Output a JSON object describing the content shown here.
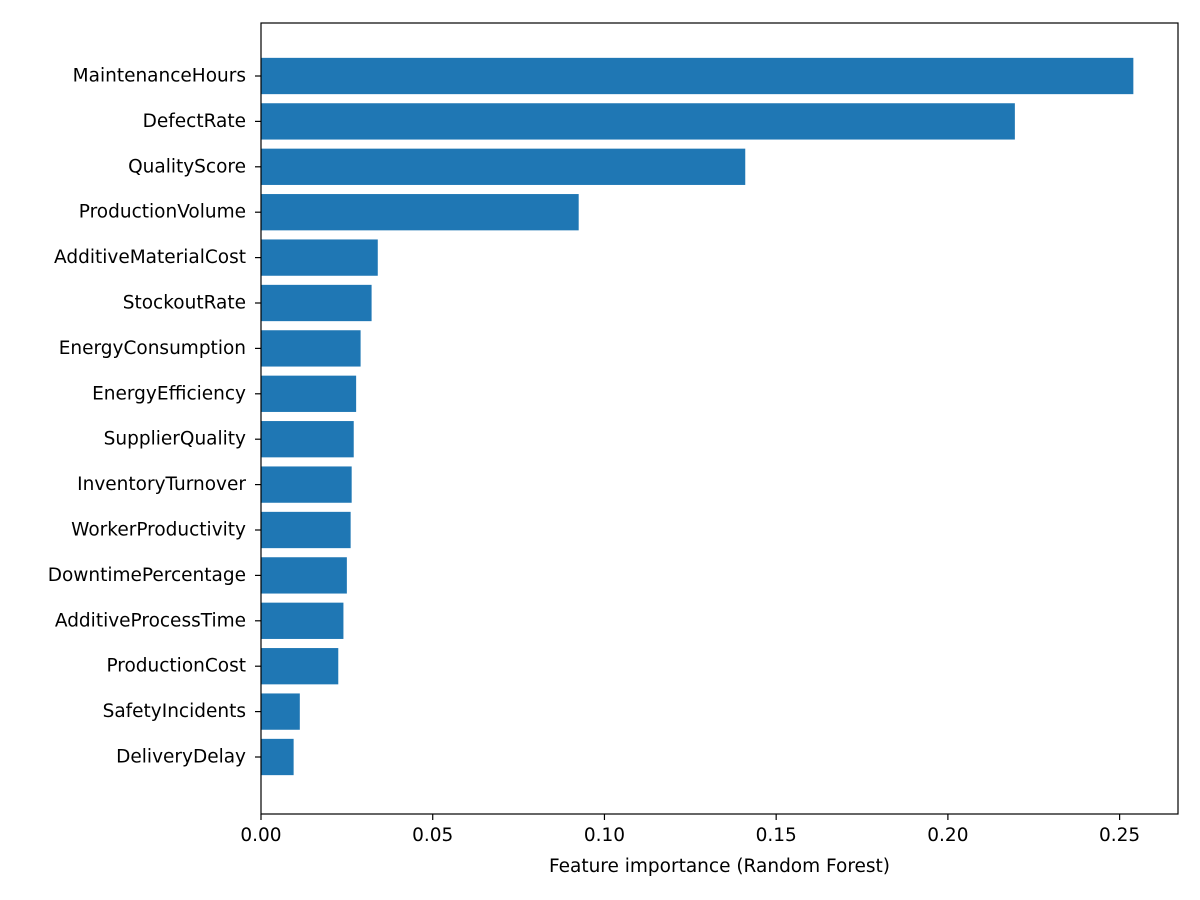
{
  "chart_data": {
    "type": "bar",
    "orientation": "horizontal",
    "categories": [
      "MaintenanceHours",
      "DefectRate",
      "QualityScore",
      "ProductionVolume",
      "AdditiveMaterialCost",
      "StockoutRate",
      "EnergyConsumption",
      "EnergyEfficiency",
      "SupplierQuality",
      "InventoryTurnover",
      "WorkerProductivity",
      "DowntimePercentage",
      "AdditiveProcessTime",
      "ProductionCost",
      "SafetyIncidents",
      "DeliveryDelay"
    ],
    "values": [
      0.254,
      0.2195,
      0.141,
      0.0925,
      0.034,
      0.0322,
      0.029,
      0.0277,
      0.027,
      0.0264,
      0.0261,
      0.025,
      0.024,
      0.0225,
      0.0113,
      0.0095
    ],
    "title": "",
    "xlabel": "Feature importance (Random Forest)",
    "ylabel": "",
    "xlim": [
      0,
      0.267
    ],
    "xticks": [
      0.0,
      0.05,
      0.1,
      0.15,
      0.2,
      0.25
    ],
    "xtick_labels": [
      "0.00",
      "0.05",
      "0.10",
      "0.15",
      "0.20",
      "0.25"
    ],
    "grid": false,
    "bar_color": "#1f77b4"
  }
}
